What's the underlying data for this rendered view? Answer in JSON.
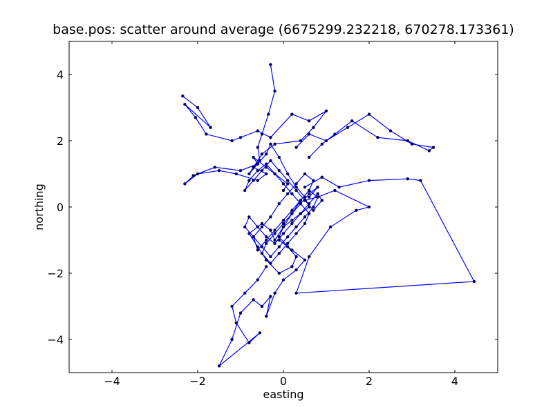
{
  "chart_data": {
    "type": "line",
    "title": "base.pos: scatter around average (6675299.232218, 670278.173361)",
    "xlabel": "easting",
    "ylabel": "northing",
    "xlim": [
      -5,
      5
    ],
    "ylim": [
      -5,
      5
    ],
    "xticks": [
      -4,
      -2,
      0,
      2,
      4
    ],
    "yticks": [
      -4,
      -2,
      0,
      2,
      4
    ],
    "xtick_labels": [
      "−4",
      "−2",
      "0",
      "2",
      "4"
    ],
    "ytick_labels": [
      "−4",
      "−2",
      "0",
      "2",
      "4"
    ],
    "grid": false,
    "line_color": "#0000ff",
    "marker_color": "#000080",
    "markers": true,
    "series": [
      {
        "x": [
          -0.3,
          -0.2,
          -0.35,
          -0.5,
          -0.6,
          -0.55,
          -0.7,
          -0.8,
          -0.6,
          -0.4,
          -0.3,
          -0.1,
          0.1,
          0.3,
          0.5,
          0.6,
          0.4,
          0.2,
          0.0,
          -0.1,
          0.1,
          0.3,
          0.2,
          -0.1,
          -0.4,
          -0.6,
          -0.8,
          -0.5,
          -0.3,
          -0.2,
          0.0,
          0.2,
          0.4,
          0.6,
          0.7,
          0.5,
          0.3,
          0.1,
          -0.1,
          -0.3,
          -0.5,
          -0.7,
          -0.6,
          -0.4,
          -0.2,
          0.0,
          0.2,
          0.4,
          0.6,
          0.8,
          0.7,
          0.5,
          0.3,
          0.1,
          -0.1,
          -0.3,
          -0.5,
          -0.7,
          -0.9,
          -0.8,
          -0.6,
          -0.4,
          -0.2,
          0.0,
          0.2,
          0.4,
          0.6,
          0.8,
          0.9,
          0.7,
          0.5,
          0.3,
          0.1,
          -0.1,
          -0.3,
          -0.5,
          -0.7,
          -0.9,
          -0.8,
          -0.6,
          -0.4,
          -0.2,
          0.0,
          0.2,
          0.4,
          0.6,
          0.5,
          0.3,
          0.1,
          -0.1,
          -0.3,
          -0.5,
          -0.4,
          -0.2,
          0.0,
          0.2,
          0.4,
          0.6,
          0.8,
          0.6
        ],
        "y": [
          4.3,
          3.5,
          2.8,
          2.2,
          1.8,
          1.4,
          1.2,
          1.0,
          1.3,
          1.6,
          1.9,
          1.5,
          1.0,
          0.6,
          0.3,
          0.0,
          -0.2,
          -0.4,
          -0.6,
          -0.9,
          -1.2,
          -1.5,
          -1.8,
          -2.0,
          -1.6,
          -1.2,
          -0.8,
          -0.5,
          -0.7,
          -1.0,
          -0.6,
          -0.2,
          0.2,
          0.5,
          0.8,
          1.0,
          0.7,
          0.4,
          0.1,
          -0.3,
          -0.6,
          -0.9,
          -1.3,
          -1.0,
          -0.7,
          -0.4,
          -0.1,
          0.2,
          0.5,
          0.3,
          0.0,
          -0.3,
          -0.6,
          -0.9,
          -1.2,
          -1.5,
          -1.2,
          -0.9,
          -0.6,
          -0.3,
          -0.6,
          -0.9,
          -1.1,
          -0.8,
          -0.5,
          -0.2,
          0.1,
          0.4,
          0.2,
          -0.1,
          0.2,
          0.5,
          0.8,
          1.1,
          1.4,
          1.1,
          0.8,
          0.5,
          0.8,
          1.1,
          1.3,
          1.0,
          0.7,
          0.4,
          0.1,
          -0.2,
          -0.5,
          -0.8,
          -1.1,
          -1.4,
          -1.7,
          -1.4,
          -1.1,
          -0.8,
          -0.5,
          -0.2,
          0.1,
          0.4,
          0.6,
          0.3
        ]
      },
      {
        "x": [
          -2.35,
          -2.0,
          -1.7,
          -2.3,
          -2.05,
          -1.8,
          -1.2,
          -1.0,
          -0.6,
          -0.3,
          0.2,
          0.6,
          1.0,
          0.7,
          0.4,
          -0.2,
          -0.5,
          -0.7,
          -0.4,
          -0.6,
          -1.1,
          -1.5,
          -2.0,
          -2.3,
          -2.1,
          -1.6,
          -1.0,
          -0.6,
          -0.7,
          -0.4,
          -0.2,
          0.1,
          0.0
        ],
        "y": [
          3.35,
          3.0,
          2.4,
          3.1,
          2.7,
          2.2,
          2.0,
          2.1,
          2.3,
          2.1,
          2.8,
          2.6,
          2.9,
          2.4,
          2.0,
          1.9,
          1.6,
          1.2,
          1.0,
          0.8,
          1.0,
          1.1,
          1.0,
          0.7,
          0.95,
          1.2,
          1.1,
          1.3,
          1.5,
          1.2,
          1.0,
          0.7,
          0.5
        ]
      },
      {
        "x": [
          0.3,
          0.6,
          1.0,
          1.5,
          2.0,
          2.5,
          3.0,
          3.5,
          3.4,
          2.9,
          2.2,
          1.6,
          1.2,
          0.9,
          0.6
        ],
        "y": [
          1.8,
          2.2,
          2.0,
          2.4,
          2.8,
          2.3,
          1.9,
          1.8,
          1.7,
          2.0,
          2.1,
          2.6,
          2.2,
          1.9,
          1.5
        ]
      },
      {
        "x": [
          0.5,
          0.9,
          1.3,
          2.0,
          2.9,
          3.2,
          4.45,
          0.3,
          0.6,
          1.1,
          1.7,
          2.0,
          1.2,
          0.8,
          0.5
        ],
        "y": [
          0.6,
          0.9,
          0.6,
          0.8,
          0.85,
          0.8,
          -2.25,
          -2.6,
          -1.5,
          -0.6,
          -0.1,
          0.0,
          0.5,
          0.3,
          0.2
        ]
      },
      {
        "x": [
          -0.4,
          -0.6,
          -0.9,
          -1.2,
          -1.1,
          -0.8,
          -0.55,
          -1.5,
          -1.2,
          -1.0,
          -0.7,
          -0.5,
          -0.3,
          -0.4,
          -0.2,
          0.0,
          0.3,
          0.5,
          0.2,
          -0.1
        ],
        "y": [
          -1.8,
          -2.2,
          -2.6,
          -3.0,
          -3.5,
          -4.1,
          -3.8,
          -4.8,
          -4.0,
          -3.2,
          -2.8,
          -3.0,
          -2.7,
          -3.3,
          -2.6,
          -2.2,
          -1.9,
          -1.6,
          -1.3,
          -1.0
        ]
      }
    ]
  }
}
